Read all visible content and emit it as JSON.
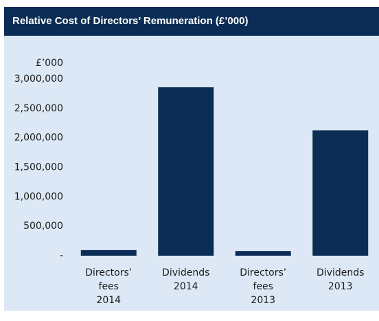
{
  "chart_data": {
    "type": "bar",
    "title": "Relative Cost of Directors’ Remuneration (£’000)",
    "y_label": "£’000",
    "categories": [
      [
        "Directors’",
        "fees",
        "2014"
      ],
      [
        "Dividends",
        "2014"
      ],
      [
        "Directors’",
        "fees",
        "2013"
      ],
      [
        "Dividends",
        "2013"
      ]
    ],
    "values": [
      95000,
      2860000,
      80000,
      2130000
    ],
    "color": "#0b2d55",
    "ylim": [
      0,
      3000000
    ],
    "yticks": [
      {
        "value": 0,
        "label": "-"
      },
      {
        "value": 500000,
        "label": "500,000"
      },
      {
        "value": 1000000,
        "label": "1,000,000"
      },
      {
        "value": 1500000,
        "label": "1,500,000"
      },
      {
        "value": 2000000,
        "label": "2,000,000"
      },
      {
        "value": 2500000,
        "label": "2,500,000"
      },
      {
        "value": 3000000,
        "label": "3,000,000"
      }
    ],
    "grid": false
  }
}
